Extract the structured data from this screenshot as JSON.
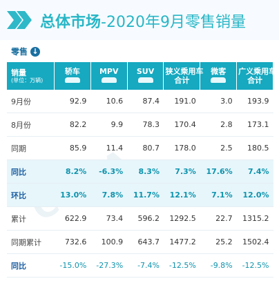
{
  "title": {
    "main": "总体市场",
    "rest": "-2020年9月零售销量"
  },
  "subtitle": "零售",
  "watermark": "CPCA",
  "table": {
    "header_label": "销量",
    "header_unit": "(单位：万辆)",
    "columns": [
      {
        "line1": "轿车",
        "line2": ""
      },
      {
        "line1": "MPV",
        "line2": ""
      },
      {
        "line1": "SUV",
        "line2": ""
      },
      {
        "line1": "狭义乘用车",
        "line2": "合计"
      },
      {
        "line1": "微客",
        "line2": ""
      },
      {
        "line1": "广义乘用车",
        "line2": "合计"
      }
    ],
    "rows": [
      {
        "label": "9月份",
        "values": [
          "92.9",
          "10.6",
          "87.4",
          "191.0",
          "3.0",
          "193.9"
        ],
        "style": ""
      },
      {
        "label": "8月份",
        "values": [
          "82.2",
          "9.9",
          "78.3",
          "170.4",
          "2.8",
          "173.1"
        ],
        "style": ""
      },
      {
        "label": "同期",
        "values": [
          "85.9",
          "11.4",
          "80.7",
          "178.0",
          "2.5",
          "180.5"
        ],
        "style": ""
      },
      {
        "label": "同比",
        "values": [
          "8.2%",
          "-6.3%",
          "8.3%",
          "7.3%",
          "17.6%",
          "7.4%"
        ],
        "style": "hi"
      },
      {
        "label": "环比",
        "values": [
          "13.0%",
          "7.8%",
          "11.7%",
          "12.1%",
          "7.1%",
          "12.0%"
        ],
        "style": "hi"
      },
      {
        "label": "累计",
        "values": [
          "622.9",
          "73.4",
          "596.2",
          "1292.5",
          "22.7",
          "1315.2"
        ],
        "style": ""
      },
      {
        "label": "同期累计",
        "values": [
          "732.6",
          "100.9",
          "643.7",
          "1477.2",
          "25.2",
          "1502.4"
        ],
        "style": ""
      },
      {
        "label": "同比",
        "values": [
          "-15.0%",
          "-27.3%",
          "-7.4%",
          "-12.5%",
          "-9.8%",
          "-12.5%"
        ],
        "style": "last"
      }
    ]
  },
  "colors": {
    "accent": "#16a9c0",
    "title": "#28b6c6",
    "highlight_row": "#e7f6fb",
    "label_blue": "#1a5da0"
  }
}
